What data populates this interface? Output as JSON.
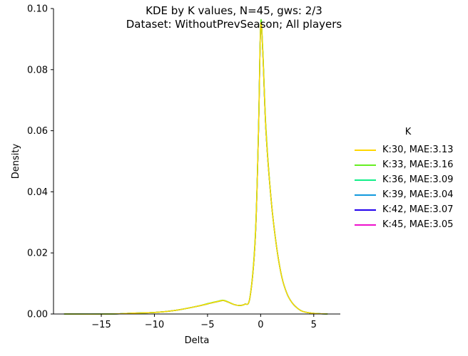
{
  "title_line1": "KDE by K values, N=45, gws: 2/3",
  "title_line2": "Dataset: WithoutPrevSeason; All players",
  "chart_data": {
    "type": "line",
    "title": "KDE by K values, N=45, gws: 2/3\nDataset: WithoutPrevSeason; All players",
    "xlabel": "Delta",
    "ylabel": "Density",
    "xlim": [
      -19.5,
      7.5
    ],
    "ylim": [
      0,
      0.1
    ],
    "xticks": [
      -15,
      -10,
      -5,
      0,
      5
    ],
    "xtick_labels": [
      "−15",
      "−10",
      "−5",
      "0",
      "5"
    ],
    "yticks": [
      0.0,
      0.02,
      0.04,
      0.06,
      0.08,
      0.1
    ],
    "ytick_labels": [
      "0.00",
      "0.02",
      "0.04",
      "0.06",
      "0.08",
      "0.10"
    ],
    "grid": false,
    "legend_title": "K",
    "legend_position": "right",
    "series": [
      {
        "name": "K:30, MAE:3.13",
        "color": "#ffd700",
        "x": [
          -18.5,
          -14,
          -12,
          -10,
          -8,
          -6,
          -5,
          -4,
          -3.5,
          -3,
          -2.5,
          -2,
          -1.5,
          -1,
          -0.5,
          -0.2,
          0,
          0.2,
          0.5,
          1,
          1.5,
          2,
          2.5,
          3,
          3.5,
          4,
          5,
          6.3
        ],
        "y": [
          0,
          0,
          0.0003,
          0.0005,
          0.0012,
          0.0025,
          0.0033,
          0.0041,
          0.0044,
          0.0038,
          0.0031,
          0.0028,
          0.0032,
          0.0055,
          0.025,
          0.06,
          0.094,
          0.086,
          0.06,
          0.037,
          0.022,
          0.012,
          0.0065,
          0.0035,
          0.0018,
          0.0008,
          0.0002,
          0
        ]
      },
      {
        "name": "K:33, MAE:3.16",
        "color": "#66ee22",
        "x": [
          -18.5,
          -14,
          -12,
          -10,
          -8,
          -6,
          -5,
          -4,
          -3.5,
          -3,
          -2.5,
          -2,
          -1.5,
          -1,
          -0.5,
          -0.2,
          0,
          0.2,
          0.5,
          1,
          1.5,
          2,
          2.5,
          3,
          3.5,
          4,
          5,
          6.3
        ],
        "y": [
          0,
          0,
          0.0003,
          0.0005,
          0.0012,
          0.0025,
          0.0034,
          0.0042,
          0.0045,
          0.0039,
          0.0031,
          0.0028,
          0.0032,
          0.0056,
          0.026,
          0.061,
          0.095,
          0.087,
          0.061,
          0.037,
          0.022,
          0.012,
          0.0065,
          0.0035,
          0.0018,
          0.0008,
          0.0002,
          0
        ]
      },
      {
        "name": "K:36, MAE:3.09",
        "color": "#11ee88",
        "x": [
          -18.5,
          -14,
          -12,
          -10,
          -8,
          -6,
          -5,
          -4,
          -3.5,
          -3,
          -2.5,
          -2,
          -1.5,
          -1,
          -0.5,
          -0.2,
          0,
          0.2,
          0.5,
          1,
          1.5,
          2,
          2.5,
          3,
          3.5,
          4,
          5,
          6.3
        ],
        "y": [
          0,
          0,
          0.0003,
          0.0005,
          0.0012,
          0.0025,
          0.0033,
          0.0041,
          0.0044,
          0.0038,
          0.0031,
          0.0028,
          0.0032,
          0.0055,
          0.025,
          0.06,
          0.094,
          0.086,
          0.06,
          0.037,
          0.022,
          0.012,
          0.0065,
          0.0035,
          0.0018,
          0.0008,
          0.0002,
          0
        ]
      },
      {
        "name": "K:39, MAE:3.04",
        "color": "#1199dd",
        "x": [
          -18.5,
          -14,
          -12,
          -10,
          -8,
          -6,
          -5,
          -4,
          -3.5,
          -3,
          -2.5,
          -2,
          -1.5,
          -1,
          -0.5,
          -0.2,
          0,
          0.2,
          0.5,
          1,
          1.5,
          2,
          2.5,
          3,
          3.5,
          4,
          5,
          6.3
        ],
        "y": [
          0,
          0,
          0.0003,
          0.0005,
          0.0012,
          0.0025,
          0.0033,
          0.0041,
          0.0044,
          0.0038,
          0.0031,
          0.0028,
          0.0032,
          0.0055,
          0.025,
          0.06,
          0.094,
          0.086,
          0.06,
          0.037,
          0.022,
          0.012,
          0.0065,
          0.0035,
          0.0018,
          0.0008,
          0.0002,
          0
        ]
      },
      {
        "name": "K:42, MAE:3.07",
        "color": "#2200ee",
        "x": [
          -18.5,
          -14,
          -12,
          -10,
          -8,
          -6,
          -5,
          -4,
          -3.5,
          -3,
          -2.5,
          -2,
          -1.5,
          -1,
          -0.5,
          -0.2,
          0,
          0.2,
          0.5,
          1,
          1.5,
          2,
          2.5,
          3,
          3.5,
          4,
          5,
          6.3
        ],
        "y": [
          0,
          0,
          0.0003,
          0.0005,
          0.0012,
          0.0025,
          0.0033,
          0.0041,
          0.0044,
          0.0038,
          0.0031,
          0.0028,
          0.0032,
          0.0055,
          0.025,
          0.06,
          0.094,
          0.086,
          0.06,
          0.037,
          0.022,
          0.012,
          0.0065,
          0.0035,
          0.0018,
          0.0008,
          0.0002,
          0
        ]
      },
      {
        "name": "K:45, MAE:3.05",
        "color": "#ee11cc",
        "x": [
          -18.5,
          -14,
          -12,
          -10,
          -8,
          -6,
          -5,
          -4,
          -3.5,
          -3,
          -2.5,
          -2,
          -1.5,
          -1,
          -0.5,
          -0.2,
          0,
          0.2,
          0.5,
          1,
          1.5,
          2,
          2.5,
          3,
          3.5,
          4,
          5,
          6.3
        ],
        "y": [
          0,
          0,
          0.0003,
          0.0005,
          0.0012,
          0.0025,
          0.0033,
          0.0041,
          0.0044,
          0.0038,
          0.0031,
          0.0028,
          0.0032,
          0.0055,
          0.025,
          0.06,
          0.094,
          0.086,
          0.06,
          0.037,
          0.022,
          0.012,
          0.0065,
          0.0035,
          0.0018,
          0.0008,
          0.0002,
          0
        ]
      }
    ]
  }
}
